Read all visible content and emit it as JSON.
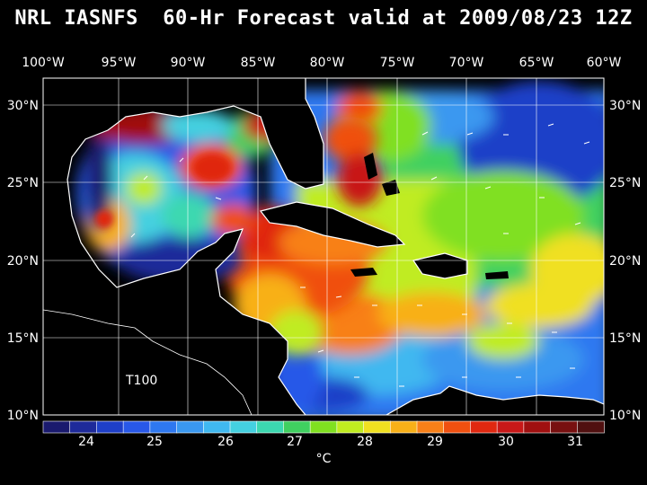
{
  "title": "NRL IASNFS  60-Hr Forecast valid at 2009/08/23 12Z",
  "map": {
    "lon_labels": [
      "100°W",
      "95°W",
      "90°W",
      "85°W",
      "80°W",
      "75°W",
      "70°W",
      "65°W",
      "60°W"
    ],
    "lat_labels": [
      "30°N",
      "25°N",
      "20°N",
      "15°N",
      "10°N"
    ],
    "region_label": "T100",
    "land_color": "#000000",
    "grid_color": "#ffffff"
  },
  "colorbar": {
    "labels": [
      "24",
      "25",
      "26",
      "27",
      "28",
      "29",
      "30",
      "31"
    ],
    "unit": "°C",
    "colors": [
      "#1a1a6e",
      "#1e2a9a",
      "#1e3fc8",
      "#2858e8",
      "#2e78f0",
      "#3a98f0",
      "#40b8f0",
      "#44d0e0",
      "#3cd8b0",
      "#40d060",
      "#80e020",
      "#c0ec20",
      "#f0e020",
      "#f8b018",
      "#f88018",
      "#f05010",
      "#e02810",
      "#c81818",
      "#a01010",
      "#781010",
      "#501010"
    ]
  }
}
